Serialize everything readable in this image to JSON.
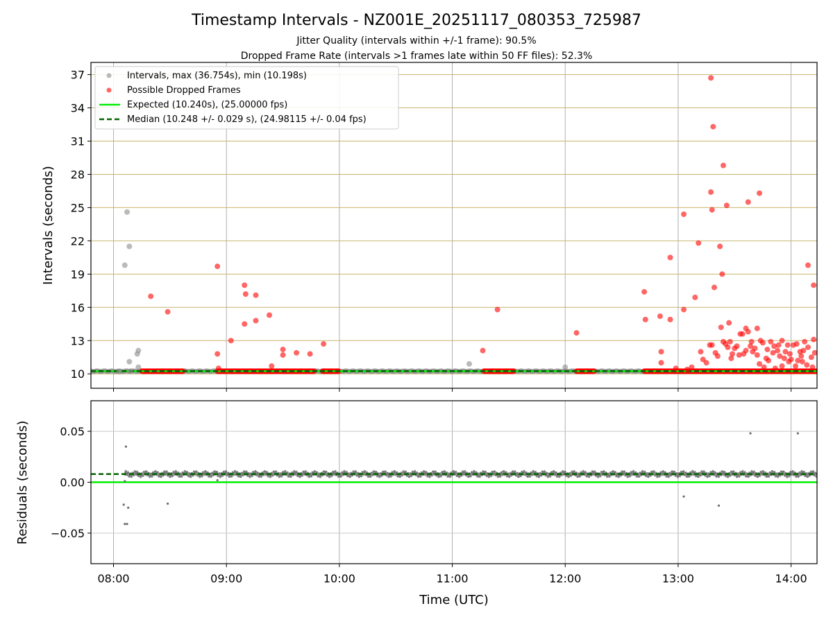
{
  "figure": {
    "title": "Timestamp Intervals - NZ001E_20251117_080353_725987",
    "subtitle_1": "Jitter Quality (intervals within +/-1 frame): 90.5%",
    "subtitle_2": "Dropped Frame Rate (intervals >1 frames late within 50 FF files): 52.3%"
  },
  "colors": {
    "intervals": "#8c8c8c",
    "dropped": "#ff0000",
    "expected": "#00ee00",
    "median": "#006400",
    "hgrid": "#c8b46e",
    "vgrid": "#b0b0b0"
  },
  "chart_data": [
    {
      "type": "scatter",
      "id": "intervals",
      "xlabel": "",
      "ylabel": "Intervals (seconds)",
      "xlim": [
        7.8,
        14.23
      ],
      "ylim": [
        8.7,
        38.1
      ],
      "x_ticks": [
        "08:00",
        "09:00",
        "10:00",
        "11:00",
        "12:00",
        "13:00",
        "14:00"
      ],
      "x_tick_values": [
        8,
        9,
        10,
        11,
        12,
        13,
        14
      ],
      "y_ticks": [
        10,
        13,
        16,
        19,
        22,
        25,
        28,
        31,
        34,
        37
      ],
      "grid": true,
      "legend_position": "top-left",
      "legend": [
        "Intervals, max (36.754s), min (10.198s)",
        "Possible Dropped Frames",
        "Expected (10.240s), (25.00000 fps)",
        "Median (10.248 +/- 0.029 s), (24.98115 +/- 0.04 fps)"
      ],
      "expected_y": 10.24,
      "median_y": 10.248,
      "series": [
        {
          "name": "Intervals, max (36.754s), min (10.198s)",
          "color": "#8c8c8c",
          "points": [
            [
              8.1,
              19.8
            ],
            [
              8.12,
              24.6
            ],
            [
              8.14,
              21.5
            ],
            [
              8.14,
              11.1
            ],
            [
              8.22,
              12.1
            ],
            [
              8.21,
              11.8
            ],
            [
              8.22,
              10.6
            ],
            [
              11.15,
              10.9
            ],
            [
              12.0,
              10.6
            ],
            [
              8.05,
              10.2
            ],
            [
              8.15,
              10.25
            ]
          ]
        },
        {
          "name": "Possible Dropped Frames",
          "color": "#ff0000",
          "bands": [
            [
              8.25,
              8.62
            ],
            [
              8.92,
              9.78
            ],
            [
              9.85,
              10.0
            ],
            [
              11.28,
              11.55
            ],
            [
              12.1,
              12.26
            ],
            [
              12.7,
              14.23
            ]
          ],
          "band_y": 10.24,
          "points": [
            [
              8.33,
              17.0
            ],
            [
              8.48,
              15.6
            ],
            [
              8.92,
              19.7
            ],
            [
              8.92,
              11.8
            ],
            [
              8.93,
              10.5
            ],
            [
              9.04,
              13.0
            ],
            [
              9.16,
              14.5
            ],
            [
              9.16,
              18.0
            ],
            [
              9.17,
              17.2
            ],
            [
              9.26,
              17.1
            ],
            [
              9.26,
              14.8
            ],
            [
              9.38,
              15.3
            ],
            [
              9.4,
              10.7
            ],
            [
              9.5,
              12.2
            ],
            [
              9.5,
              11.7
            ],
            [
              9.62,
              11.9
            ],
            [
              9.74,
              11.8
            ],
            [
              9.86,
              12.7
            ],
            [
              11.27,
              12.1
            ],
            [
              11.4,
              15.8
            ],
            [
              12.1,
              13.7
            ],
            [
              12.7,
              17.4
            ],
            [
              12.71,
              14.9
            ],
            [
              12.84,
              15.2
            ],
            [
              12.85,
              12.0
            ],
            [
              12.85,
              11.0
            ],
            [
              12.93,
              14.9
            ],
            [
              12.93,
              20.5
            ],
            [
              13.05,
              24.4
            ],
            [
              13.05,
              15.8
            ],
            [
              13.15,
              16.9
            ],
            [
              13.18,
              21.8
            ],
            [
              13.29,
              36.7
            ],
            [
              13.29,
              26.4
            ],
            [
              13.3,
              24.8
            ],
            [
              13.31,
              32.3
            ],
            [
              13.32,
              17.8
            ],
            [
              13.37,
              21.5
            ],
            [
              13.39,
              19.0
            ],
            [
              13.4,
              28.8
            ],
            [
              13.43,
              25.2
            ],
            [
              13.62,
              25.5
            ],
            [
              13.72,
              26.3
            ],
            [
              13.38,
              14.2
            ],
            [
              13.45,
              14.6
            ],
            [
              13.6,
              14.1
            ],
            [
              13.7,
              14.1
            ],
            [
              13.92,
              13.0
            ],
            [
              14.15,
              19.8
            ],
            [
              14.2,
              18.0
            ],
            [
              13.2,
              12.0
            ],
            [
              13.22,
              11.3
            ],
            [
              13.3,
              12.6
            ],
            [
              13.35,
              11.6
            ],
            [
              13.42,
              12.7
            ],
            [
              13.5,
              12.3
            ],
            [
              13.55,
              13.6
            ],
            [
              13.6,
              12.1
            ],
            [
              13.65,
              12.9
            ],
            [
              13.7,
              11.7
            ],
            [
              13.75,
              12.8
            ],
            [
              13.8,
              11.2
            ],
            [
              13.85,
              12.5
            ],
            [
              13.9,
              11.6
            ],
            [
              13.95,
              12.0
            ],
            [
              14.0,
              11.3
            ],
            [
              14.05,
              12.7
            ],
            [
              14.1,
              11.1
            ],
            [
              14.15,
              12.4
            ],
            [
              14.2,
              13.1
            ],
            [
              13.25,
              11.0
            ],
            [
              13.33,
              11.9
            ],
            [
              13.47,
              11.4
            ],
            [
              13.52,
              12.5
            ],
            [
              13.58,
              11.8
            ],
            [
              13.68,
              12.3
            ],
            [
              13.78,
              11.4
            ],
            [
              13.88,
              12.1
            ],
            [
              13.98,
              11.1
            ],
            [
              14.08,
              12.0
            ],
            [
              14.18,
              11.5
            ],
            [
              13.57,
              13.6
            ],
            [
              13.62,
              13.8
            ],
            [
              13.73,
              13.0
            ],
            [
              13.82,
              12.9
            ],
            [
              13.97,
              12.6
            ],
            [
              14.02,
              12.6
            ],
            [
              14.12,
              12.9
            ],
            [
              13.28,
              12.6
            ],
            [
              13.4,
              12.9
            ],
            [
              13.46,
              12.9
            ],
            [
              13.64,
              12.5
            ],
            [
              13.66,
              12.0
            ],
            [
              13.84,
              11.9
            ],
            [
              13.94,
              11.4
            ],
            [
              14.06,
              11.2
            ],
            [
              14.14,
              10.8
            ],
            [
              14.19,
              10.6
            ],
            [
              13.72,
              10.9
            ],
            [
              13.76,
              10.6
            ],
            [
              13.86,
              10.5
            ],
            [
              13.92,
              10.7
            ],
            [
              14.04,
              10.7
            ],
            [
              13.12,
              10.6
            ],
            [
              12.98,
              10.5
            ],
            [
              13.08,
              10.4
            ],
            [
              13.44,
              12.4
            ],
            [
              13.48,
              11.8
            ],
            [
              13.54,
              11.7
            ],
            [
              13.79,
              12.2
            ],
            [
              13.89,
              12.6
            ],
            [
              13.99,
              11.8
            ],
            [
              14.09,
              11.6
            ],
            [
              14.11,
              12.1
            ],
            [
              14.21,
              11.9
            ]
          ]
        }
      ]
    },
    {
      "type": "scatter",
      "id": "residuals",
      "xlabel": "Time (UTC)",
      "ylabel": "Residuals (seconds)",
      "xlim": [
        7.8,
        14.23
      ],
      "ylim": [
        -0.08,
        0.08
      ],
      "x_ticks": [
        "08:00",
        "09:00",
        "10:00",
        "11:00",
        "12:00",
        "13:00",
        "14:00"
      ],
      "x_tick_values": [
        8,
        9,
        10,
        11,
        12,
        13,
        14
      ],
      "y_ticks": [
        "−0.05",
        "0.00",
        "0.05"
      ],
      "y_tick_values": [
        -0.05,
        0.0,
        0.05
      ],
      "grid": true,
      "expected_y": 0.0,
      "median_y": 0.008,
      "series": [
        {
          "name": "Residuals",
          "color": "#6e6e6e",
          "band": [
            [
              8.1,
              14.23
            ]
          ],
          "band_y": 0.008,
          "points": [
            [
              8.11,
              0.035
            ],
            [
              8.09,
              -0.022
            ],
            [
              8.1,
              -0.041
            ],
            [
              8.12,
              -0.041
            ],
            [
              8.13,
              -0.025
            ],
            [
              8.48,
              -0.021
            ],
            [
              13.05,
              -0.014
            ],
            [
              13.36,
              -0.023
            ],
            [
              13.64,
              0.048
            ],
            [
              14.06,
              0.048
            ],
            [
              8.1,
              0.001
            ],
            [
              8.92,
              0.002
            ]
          ]
        }
      ]
    }
  ]
}
